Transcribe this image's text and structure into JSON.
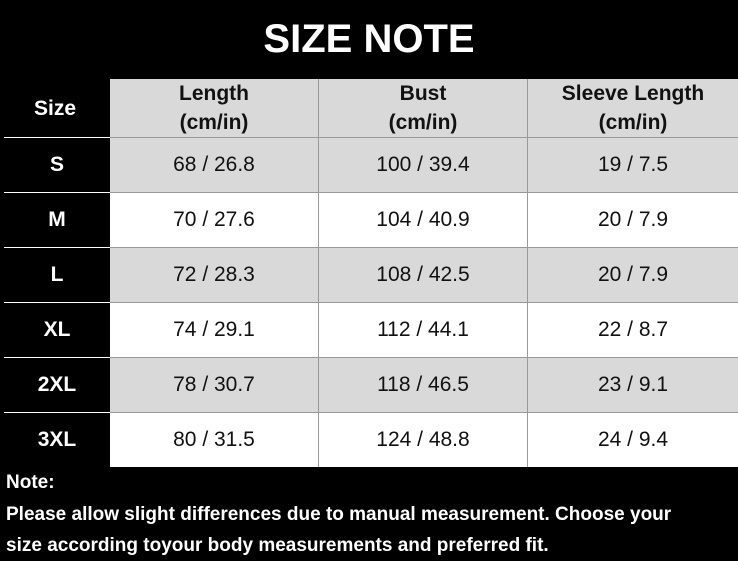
{
  "header": {
    "title": "SIZE NOTE"
  },
  "table": {
    "columns": [
      [
        "Size"
      ],
      [
        "Length",
        "(cm/in)"
      ],
      [
        "Bust",
        "(cm/in)"
      ],
      [
        "Sleeve Length",
        "(cm/in)"
      ]
    ],
    "rows": [
      [
        "S",
        "68 / 26.8",
        "100 / 39.4",
        "19 / 7.5"
      ],
      [
        "M",
        "70 / 27.6",
        "104 / 40.9",
        "20 / 7.9"
      ],
      [
        "L",
        "72 / 28.3",
        "108 / 42.5",
        "20 / 7.9"
      ],
      [
        "XL",
        "74 / 29.1",
        "112 / 44.1",
        "22 / 8.7"
      ],
      [
        "2XL",
        "78 / 30.7",
        "118 / 46.5",
        "23 / 9.1"
      ],
      [
        "3XL",
        "80 / 31.5",
        "124 / 48.8",
        "24 / 9.4"
      ]
    ]
  },
  "note": {
    "label": "Note:",
    "lines": [
      "Please allow slight differences due to manual measurement. Choose your",
      "size according toyour body measurements and preferred fit."
    ]
  }
}
